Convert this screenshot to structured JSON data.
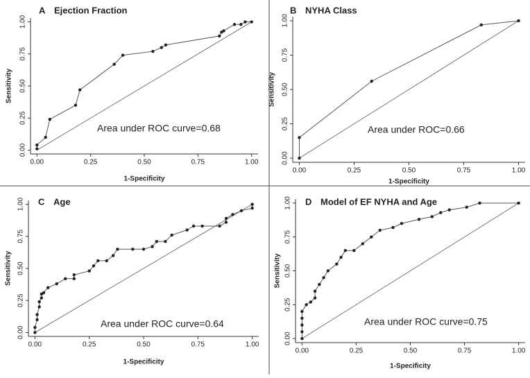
{
  "chart_data": [
    {
      "type": "line",
      "label": "A",
      "title": "Ejection Fraction",
      "x_label": "1-Specificity",
      "y_label": "Sensitivity",
      "annotation": "Area under ROC curve=0.68",
      "color": "#555555",
      "x": [
        0,
        0,
        0.04,
        0.06,
        0.18,
        0.2,
        0.36,
        0.4,
        0.54,
        0.58,
        0.6,
        0.85,
        0.86,
        0.87,
        0.92,
        0.95,
        0.97,
        1
      ],
      "values": [
        0.01,
        0.04,
        0.1,
        0.24,
        0.35,
        0.47,
        0.67,
        0.74,
        0.77,
        0.8,
        0.82,
        0.89,
        0.92,
        0.93,
        0.98,
        0.98,
        1,
        1
      ],
      "xlim": [
        -0.03,
        1.03
      ],
      "ylim": [
        -0.03,
        1.03
      ],
      "xticks": [
        {
          "value": 0,
          "label": "0.00"
        },
        {
          "value": 0.25,
          "label": "0.25"
        },
        {
          "value": 0.5,
          "label": "0.50"
        },
        {
          "value": 0.75,
          "label": "0.75"
        },
        {
          "value": 1,
          "label": "1.00"
        }
      ],
      "yticks": [
        {
          "value": 0,
          "label": "0.00"
        },
        {
          "value": 0.25,
          "label": "0.25"
        },
        {
          "value": 0.5,
          "label": "0.50"
        },
        {
          "value": 0.75,
          "label": "0.75"
        },
        {
          "value": 1,
          "label": "1.00"
        }
      ]
    },
    {
      "type": "line",
      "label": "B",
      "title": "NYHA Class",
      "x_label": "1-Specificity",
      "y_label": "Sensitivity",
      "annotation": "Area under ROC=0.66",
      "color": "#555555",
      "x": [
        0,
        0,
        0.33,
        0.83,
        1
      ],
      "values": [
        0,
        0.15,
        0.56,
        0.97,
        1
      ],
      "xlim": [
        -0.03,
        1.03
      ],
      "ylim": [
        -0.03,
        1.03
      ],
      "xticks": [
        {
          "value": 0,
          "label": "0.00"
        },
        {
          "value": 0.25,
          "label": "0.25"
        },
        {
          "value": 0.5,
          "label": "0.50"
        },
        {
          "value": 0.75,
          "label": "0.75"
        },
        {
          "value": 1,
          "label": "1.00"
        }
      ],
      "yticks": [
        {
          "value": 0,
          "label": "0.00"
        },
        {
          "value": 0.25,
          "label": "0.25"
        },
        {
          "value": 0.5,
          "label": "0.50"
        },
        {
          "value": 0.75,
          "label": "0.75"
        },
        {
          "value": 1,
          "label": "1.00"
        }
      ]
    },
    {
      "type": "line",
      "label": "C",
      "title": "Age",
      "x_label": "1-Specificity",
      "y_label": "Sensitivity",
      "annotation": "Area under ROC curve=0.64",
      "color": "#555555",
      "x": [
        0,
        0,
        0.01,
        0.01,
        0.02,
        0.02,
        0.03,
        0.03,
        0.04,
        0.06,
        0.1,
        0.14,
        0.18,
        0.18,
        0.25,
        0.27,
        0.29,
        0.33,
        0.36,
        0.38,
        0.45,
        0.5,
        0.54,
        0.56,
        0.6,
        0.63,
        0.7,
        0.73,
        0.77,
        0.85,
        0.88,
        0.88,
        0.91,
        0.95,
        1,
        1
      ],
      "values": [
        0,
        0.04,
        0.1,
        0.14,
        0.2,
        0.24,
        0.27,
        0.3,
        0.31,
        0.35,
        0.38,
        0.42,
        0.42,
        0.45,
        0.48,
        0.52,
        0.56,
        0.56,
        0.6,
        0.65,
        0.65,
        0.65,
        0.67,
        0.71,
        0.71,
        0.76,
        0.8,
        0.83,
        0.83,
        0.83,
        0.86,
        0.89,
        0.92,
        0.95,
        0.97,
        1
      ],
      "xlim": [
        -0.03,
        1.03
      ],
      "ylim": [
        -0.03,
        1.03
      ],
      "xticks": [
        {
          "value": 0,
          "label": "0.00"
        },
        {
          "value": 0.25,
          "label": "0.25"
        },
        {
          "value": 0.5,
          "label": "0.50"
        },
        {
          "value": 0.75,
          "label": "0.75"
        },
        {
          "value": 1,
          "label": "1.00"
        }
      ],
      "yticks": [
        {
          "value": 0,
          "label": "0.00"
        },
        {
          "value": 0.25,
          "label": "0.25"
        },
        {
          "value": 0.5,
          "label": "0.50"
        },
        {
          "value": 0.75,
          "label": "0.75"
        },
        {
          "value": 1,
          "label": "1.00"
        }
      ]
    },
    {
      "type": "line",
      "label": "D",
      "title": "Model of EF NYHA and Age",
      "x_label": "1-Specificity",
      "y_label": "Sensitivity",
      "annotation": "Area under ROC curve=0.75",
      "color": "#555555",
      "x": [
        0,
        0,
        0,
        0,
        0,
        0.02,
        0.04,
        0.06,
        0.06,
        0.08,
        0.1,
        0.12,
        0.16,
        0.18,
        0.2,
        0.24,
        0.28,
        0.32,
        0.36,
        0.42,
        0.46,
        0.54,
        0.6,
        0.64,
        0.68,
        0.76,
        0.82,
        1
      ],
      "values": [
        0,
        0.05,
        0.1,
        0.15,
        0.2,
        0.25,
        0.27,
        0.3,
        0.35,
        0.4,
        0.45,
        0.5,
        0.55,
        0.6,
        0.65,
        0.65,
        0.7,
        0.75,
        0.8,
        0.82,
        0.85,
        0.88,
        0.9,
        0.93,
        0.95,
        0.97,
        1,
        1
      ],
      "xlim": [
        -0.03,
        1.03
      ],
      "ylim": [
        -0.03,
        1.03
      ],
      "xticks": [
        {
          "value": 0,
          "label": "0.00"
        },
        {
          "value": 0.25,
          "label": "0.25"
        },
        {
          "value": 0.5,
          "label": "0.50"
        },
        {
          "value": 0.75,
          "label": "0.75"
        },
        {
          "value": 1,
          "label": "1.00"
        }
      ],
      "yticks": [
        {
          "value": 0,
          "label": "0.00"
        },
        {
          "value": 0.25,
          "label": "0.25"
        },
        {
          "value": 0.5,
          "label": "0.50"
        },
        {
          "value": 0.75,
          "label": "0.75"
        },
        {
          "value": 1,
          "label": "1.00"
        }
      ]
    }
  ]
}
